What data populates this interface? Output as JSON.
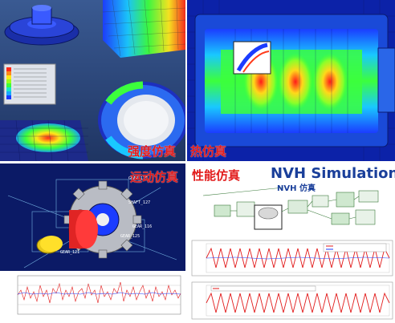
{
  "panels": {
    "strength": {
      "caption": "强度仿真"
    },
    "thermal": {
      "caption": "热仿真"
    },
    "motion": {
      "caption": "运动仿真"
    },
    "performance": {
      "caption": "性能仿真",
      "nvh_title": "NVH Simulation",
      "nvh_subtitle": "NVH 仿真"
    }
  },
  "colors": {
    "caption": "#e21b1b",
    "nvh": "#1a3f9a",
    "fea_background": "#2f4a7e",
    "thermal_background": "#0d2bb8",
    "motion_background": "#0d1b6b"
  }
}
